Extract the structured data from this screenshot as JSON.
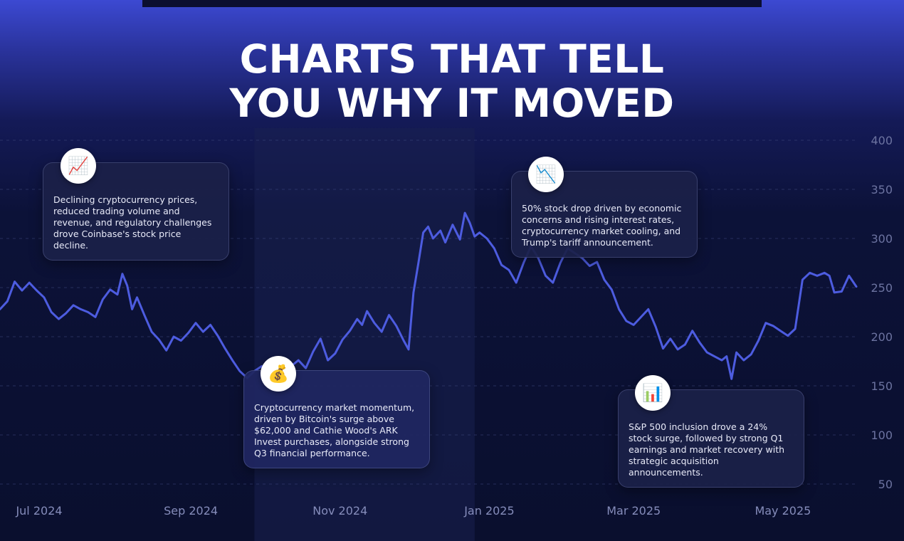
{
  "title_lines": [
    "CHARTS THAT TELL",
    "YOU WHY IT MOVED"
  ],
  "colors": {
    "line": "#4d5ce0",
    "highlight_band": "#1a2150",
    "background": "#0b1030",
    "title": "#ffffff"
  },
  "chart_data": {
    "type": "line",
    "x_ticks": [
      "Jul 2024",
      "Sep 2024",
      "Nov 2024",
      "Jan 2025",
      "Mar 2025",
      "May 2025"
    ],
    "y_ticks": [
      400,
      350,
      300,
      250,
      200,
      150,
      100,
      50
    ],
    "ylim": [
      50,
      400
    ],
    "xlim": [
      "2024-06-15",
      "2025-05-31"
    ],
    "grid": true,
    "series": [
      {
        "points": [
          [
            "2024-06-15",
            228
          ],
          [
            "2024-06-18",
            236
          ],
          [
            "2024-06-21",
            256
          ],
          [
            "2024-06-24",
            247
          ],
          [
            "2024-06-27",
            255
          ],
          [
            "2024-06-30",
            247
          ],
          [
            "2024-07-03",
            240
          ],
          [
            "2024-07-06",
            225
          ],
          [
            "2024-07-09",
            218
          ],
          [
            "2024-07-12",
            224
          ],
          [
            "2024-07-15",
            232
          ],
          [
            "2024-07-18",
            228
          ],
          [
            "2024-07-21",
            225
          ],
          [
            "2024-07-24",
            220
          ],
          [
            "2024-07-27",
            238
          ],
          [
            "2024-07-30",
            248
          ],
          [
            "2024-08-02",
            243
          ],
          [
            "2024-08-04",
            264
          ],
          [
            "2024-08-06",
            252
          ],
          [
            "2024-08-08",
            228
          ],
          [
            "2024-08-10",
            240
          ],
          [
            "2024-08-13",
            222
          ],
          [
            "2024-08-16",
            205
          ],
          [
            "2024-08-19",
            197
          ],
          [
            "2024-08-22",
            186
          ],
          [
            "2024-08-25",
            200
          ],
          [
            "2024-08-28",
            196
          ],
          [
            "2024-08-31",
            204
          ],
          [
            "2024-09-03",
            214
          ],
          [
            "2024-09-06",
            205
          ],
          [
            "2024-09-09",
            212
          ],
          [
            "2024-09-12",
            201
          ],
          [
            "2024-09-15",
            188
          ],
          [
            "2024-09-18",
            176
          ],
          [
            "2024-09-21",
            165
          ],
          [
            "2024-09-24",
            158
          ],
          [
            "2024-09-27",
            165
          ],
          [
            "2024-09-30",
            170
          ],
          [
            "2024-10-03",
            166
          ],
          [
            "2024-10-06",
            172
          ],
          [
            "2024-10-09",
            164
          ],
          [
            "2024-10-12",
            170
          ],
          [
            "2024-10-15",
            176
          ],
          [
            "2024-10-18",
            168
          ],
          [
            "2024-10-21",
            185
          ],
          [
            "2024-10-24",
            198
          ],
          [
            "2024-10-27",
            176
          ],
          [
            "2024-10-30",
            183
          ],
          [
            "2024-11-02",
            197
          ],
          [
            "2024-11-05",
            206
          ],
          [
            "2024-11-08",
            218
          ],
          [
            "2024-11-10",
            212
          ],
          [
            "2024-11-12",
            226
          ],
          [
            "2024-11-15",
            214
          ],
          [
            "2024-11-18",
            205
          ],
          [
            "2024-11-21",
            222
          ],
          [
            "2024-11-24",
            211
          ],
          [
            "2024-11-27",
            196
          ],
          [
            "2024-11-29",
            187
          ],
          [
            "2024-12-01",
            245
          ],
          [
            "2024-12-03",
            275
          ],
          [
            "2024-12-05",
            306
          ],
          [
            "2024-12-07",
            312
          ],
          [
            "2024-12-09",
            300
          ],
          [
            "2024-12-12",
            308
          ],
          [
            "2024-12-14",
            296
          ],
          [
            "2024-12-17",
            314
          ],
          [
            "2024-12-20",
            299
          ],
          [
            "2024-12-22",
            326
          ],
          [
            "2024-12-24",
            316
          ],
          [
            "2024-12-26",
            302
          ],
          [
            "2024-12-28",
            306
          ],
          [
            "2024-12-31",
            300
          ],
          [
            "2025-01-03",
            290
          ],
          [
            "2025-01-06",
            273
          ],
          [
            "2025-01-09",
            268
          ],
          [
            "2025-01-12",
            255
          ],
          [
            "2025-01-15",
            275
          ],
          [
            "2025-01-18",
            292
          ],
          [
            "2025-01-21",
            280
          ],
          [
            "2025-01-24",
            262
          ],
          [
            "2025-01-27",
            255
          ],
          [
            "2025-01-30",
            275
          ],
          [
            "2025-02-02",
            290
          ],
          [
            "2025-02-05",
            285
          ],
          [
            "2025-02-08",
            280
          ],
          [
            "2025-02-11",
            272
          ],
          [
            "2025-02-14",
            276
          ],
          [
            "2025-02-17",
            258
          ],
          [
            "2025-02-20",
            248
          ],
          [
            "2025-02-23",
            228
          ],
          [
            "2025-02-26",
            216
          ],
          [
            "2025-03-01",
            212
          ],
          [
            "2025-03-04",
            220
          ],
          [
            "2025-03-07",
            228
          ],
          [
            "2025-03-10",
            210
          ],
          [
            "2025-03-13",
            188
          ],
          [
            "2025-03-16",
            198
          ],
          [
            "2025-03-19",
            187
          ],
          [
            "2025-03-22",
            192
          ],
          [
            "2025-03-25",
            206
          ],
          [
            "2025-03-28",
            194
          ],
          [
            "2025-03-31",
            184
          ],
          [
            "2025-04-03",
            180
          ],
          [
            "2025-04-06",
            176
          ],
          [
            "2025-04-08",
            180
          ],
          [
            "2025-04-10",
            157
          ],
          [
            "2025-04-12",
            184
          ],
          [
            "2025-04-15",
            176
          ],
          [
            "2025-04-18",
            182
          ],
          [
            "2025-04-21",
            196
          ],
          [
            "2025-04-24",
            214
          ],
          [
            "2025-04-27",
            211
          ],
          [
            "2025-04-30",
            206
          ],
          [
            "2025-05-03",
            201
          ],
          [
            "2025-05-06",
            208
          ],
          [
            "2025-05-09",
            258
          ],
          [
            "2025-05-12",
            265
          ],
          [
            "2025-05-15",
            262
          ],
          [
            "2025-05-18",
            265
          ],
          [
            "2025-05-20",
            262
          ],
          [
            "2025-05-22",
            245
          ],
          [
            "2025-05-25",
            246
          ],
          [
            "2025-05-28",
            262
          ],
          [
            "2025-05-31",
            251
          ]
        ]
      }
    ],
    "highlight_range": [
      "2024-09-27",
      "2024-12-26"
    ]
  },
  "annotations": [
    {
      "icon": "chart-increasing-icon",
      "glyph": "📈",
      "text": "Declining cryptocurrency prices, reduced trading volume and revenue, and regulatory challenges drove Coinbase's stock price decline."
    },
    {
      "icon": "money-bag-icon",
      "glyph": "💰",
      "text": "Cryptocurrency market momentum, driven by Bitcoin's surge above $62,000 and Cathie Wood's ARK Invest purchases, alongside strong Q3 financial performance."
    },
    {
      "icon": "chart-decreasing-icon",
      "glyph": "📉",
      "text": "50% stock drop driven by economic concerns and rising interest rates, cryptocurrency market cooling, and Trump's tariff announcement."
    },
    {
      "icon": "bar-chart-icon",
      "glyph": "📊",
      "text": "S&P 500 inclusion drove a 24% stock surge, followed by strong Q1 earnings and market recovery with strategic acquisition announcements."
    }
  ]
}
